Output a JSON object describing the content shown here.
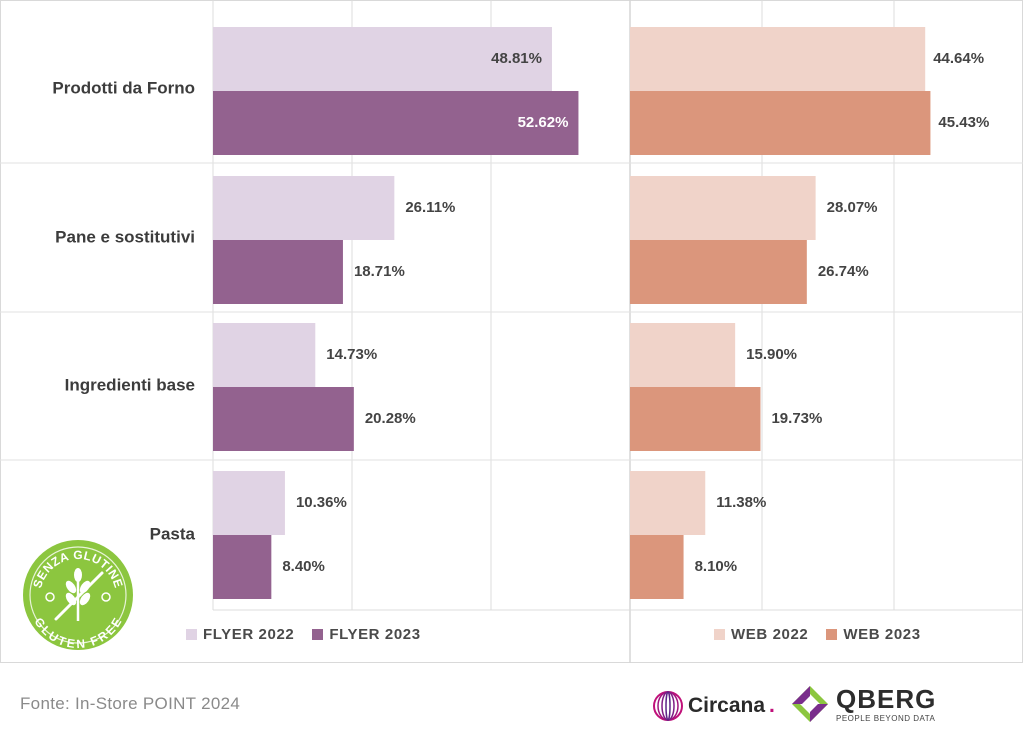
{
  "chart_data": {
    "type": "bar",
    "orientation": "horizontal",
    "categories": [
      "Prodotti da Forno",
      "Pane e sostitutivi",
      "Ingredienti base",
      "Pasta"
    ],
    "panels": [
      {
        "series": [
          {
            "name": "FLYER 2022",
            "values": [
              48.81,
              26.11,
              14.73,
              10.36
            ],
            "labels": [
              "48.81%",
              "26.11%",
              "14.73%",
              "10.36%"
            ],
            "color": "#e0d3e4"
          },
          {
            "name": "FLYER 2023",
            "values": [
              52.62,
              18.71,
              20.28,
              8.4
            ],
            "labels": [
              "52.62%",
              "18.71%",
              "20.28%",
              "8.40%"
            ],
            "color": "#93628f"
          }
        ],
        "xlim": [
          0,
          60
        ]
      },
      {
        "series": [
          {
            "name": "WEB 2022",
            "values": [
              44.64,
              28.07,
              15.9,
              11.38
            ],
            "labels": [
              "44.64%",
              "28.07%",
              "15.90%",
              "11.38%"
            ],
            "color": "#f0d3c9"
          },
          {
            "name": "WEB 2023",
            "values": [
              45.43,
              26.74,
              19.73,
              8.1
            ],
            "labels": [
              "45.43%",
              "26.74%",
              "19.73%",
              "8.10%"
            ],
            "color": "#db967c"
          }
        ],
        "xlim": [
          0,
          60
        ]
      }
    ],
    "grid": true,
    "legend": "bottom"
  },
  "colors": {
    "label_on_dark": "#ffffff"
  },
  "footer": {
    "source": "Fonte: In-Store POINT 2024",
    "circana": "Circana",
    "circana_dot": ".",
    "qberg": "QBERG",
    "qberg_tagline": "PEOPLE BEYOND DATA"
  },
  "badge": {
    "top_text": "SENZA GLUTINE",
    "bottom_text": "GLUTEN FREE",
    "icon": "wheat-crossed-icon"
  }
}
